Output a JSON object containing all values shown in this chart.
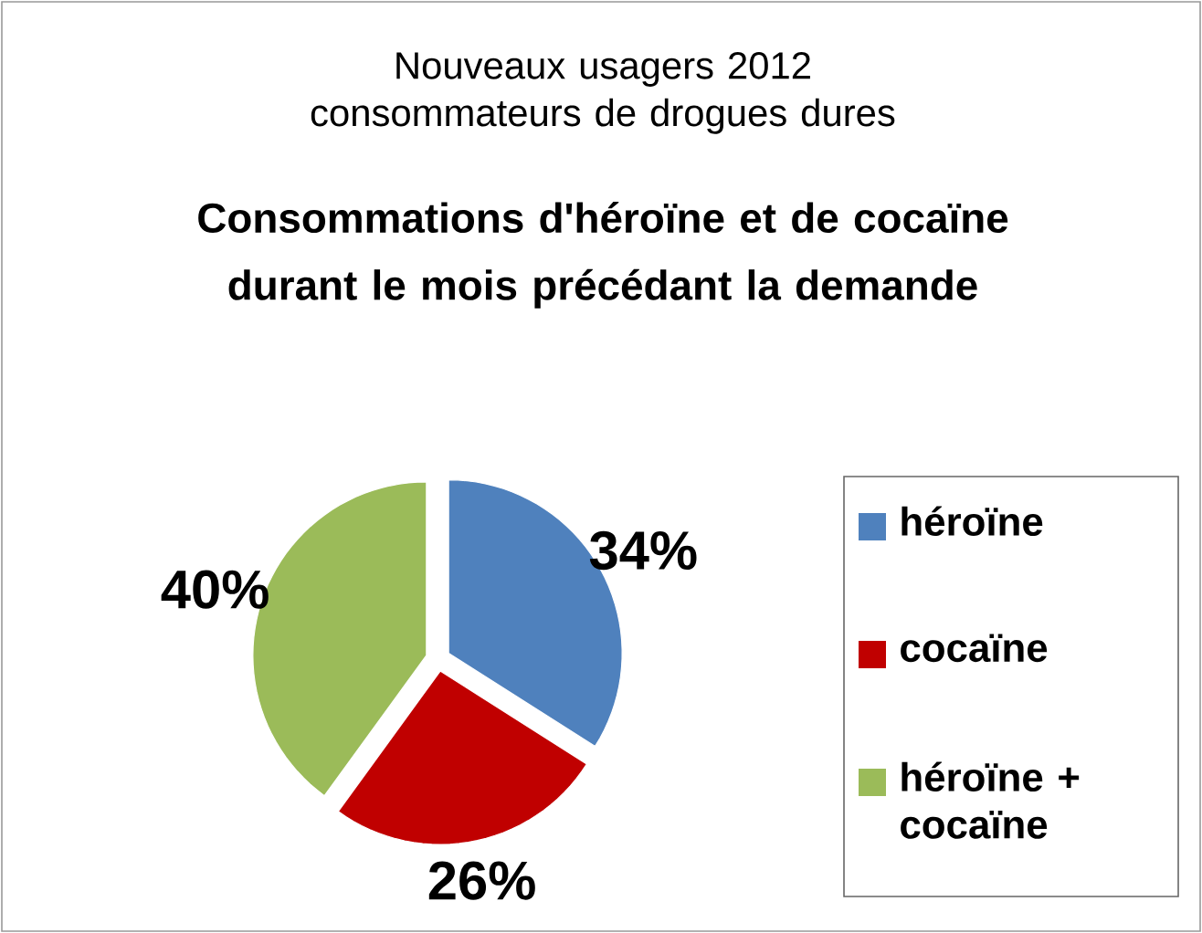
{
  "chart_data": {
    "type": "pie",
    "title": "Nouveaux usagers 2012 consommateurs de drogues dures",
    "subtitle": "Consommations d'héroïne et de cocaïne durant le mois précédant la demande",
    "categories": [
      "héroïne",
      "cocaïne",
      "héroïne + cocaïne"
    ],
    "values": [
      34,
      26,
      40
    ],
    "value_labels": [
      "34%",
      "26%",
      "40%"
    ],
    "colors": [
      "#4f81bd",
      "#c00000",
      "#9bbb59"
    ],
    "legend": "right"
  }
}
